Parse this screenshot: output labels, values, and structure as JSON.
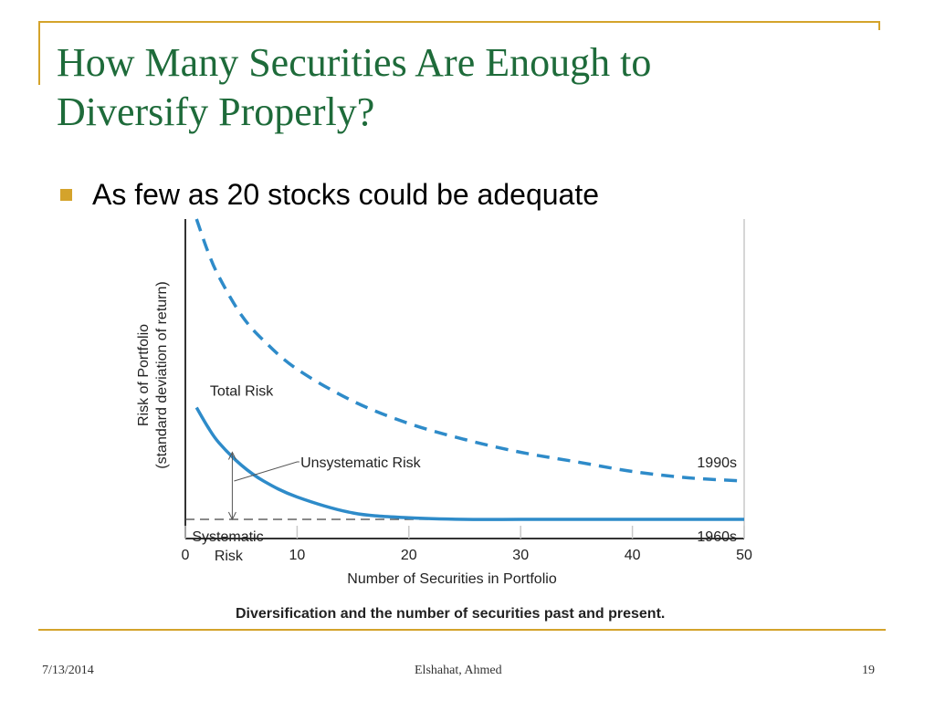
{
  "slide": {
    "title_lines": [
      "How Many Securities Are Enough to",
      "Diversify Properly?"
    ],
    "bullet": "As few as 20 stocks could be adequate"
  },
  "footer": {
    "date": "7/13/2014",
    "author": "Elshahat, Ahmed",
    "page": "19"
  },
  "colors": {
    "title": "#1E6B3A",
    "accent": "#D4A32B",
    "curve": "#2E8BC9",
    "plot_bg": "#FFFFFF"
  },
  "chart_data": {
    "type": "line",
    "title": "Diversification and the number of securities past and present.",
    "xlabel": "Number of Securities in Portfolio",
    "ylabel": [
      "Risk of Portfolio",
      "(standard deviation of return)"
    ],
    "xlim": [
      0,
      50
    ],
    "xticks": [
      0,
      10,
      20,
      30,
      40,
      50
    ],
    "y_tick_labels_shown": false,
    "grid": false,
    "series": [
      {
        "name": "1990s",
        "style": "dashed",
        "x": [
          1,
          2,
          3,
          5,
          7,
          10,
          15,
          20,
          25,
          30,
          35,
          40,
          45,
          50
        ],
        "y": [
          1.0,
          0.9,
          0.82,
          0.7,
          0.62,
          0.53,
          0.43,
          0.36,
          0.31,
          0.27,
          0.24,
          0.21,
          0.19,
          0.18
        ]
      },
      {
        "name": "1960s",
        "style": "solid",
        "x": [
          1,
          2,
          3,
          5,
          7,
          10,
          15,
          20,
          25,
          30,
          35,
          40,
          45,
          50
        ],
        "y": [
          0.41,
          0.35,
          0.3,
          0.23,
          0.18,
          0.13,
          0.08,
          0.065,
          0.06,
          0.06,
          0.06,
          0.06,
          0.06,
          0.06
        ]
      }
    ],
    "systematic_level": 0.06,
    "annotations": {
      "total_risk": "Total Risk",
      "unsystematic_risk": "Unsystematic Risk",
      "systematic_risk": [
        "Systematic",
        "Risk"
      ]
    }
  }
}
